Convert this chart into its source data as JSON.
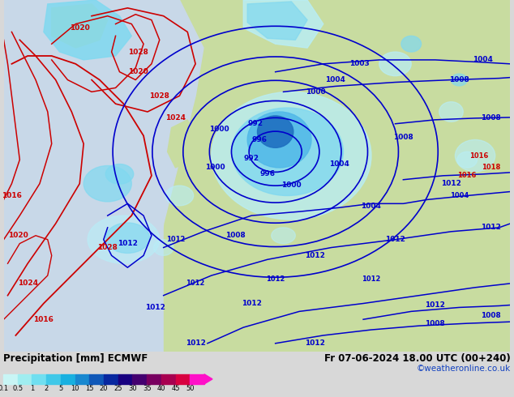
{
  "title_left": "Precipitation [mm] ECMWF",
  "title_right": "Fr 07-06-2024 18.00 UTC (00+240)",
  "credit": "©weatheronline.co.uk",
  "colorbar_levels": [
    "0.1",
    "0.5",
    "1",
    "2",
    "5",
    "10",
    "15",
    "20",
    "25",
    "30",
    "35",
    "40",
    "45",
    "50"
  ],
  "colorbar_colors": [
    "#c8f5f5",
    "#a0edf0",
    "#70dff0",
    "#40c8e8",
    "#18b0e0",
    "#1888d0",
    "#1058b8",
    "#0828a0",
    "#180080",
    "#440070",
    "#780060",
    "#a80050",
    "#d80040",
    "#ff10c8"
  ],
  "ocean_color": "#c8d8e8",
  "land_color": "#c8dca0",
  "bottom_bg": "#d8d8d8",
  "font_color": "#000000",
  "credit_color": "#1040c0",
  "fig_width": 6.34,
  "fig_height": 4.9,
  "dpi": 100,
  "red_isobar_color": "#cc0000",
  "blue_isobar_color": "#0000cc",
  "prec_colors": {
    "light1": "#b8eef8",
    "light2": "#80d8f0",
    "mid": "#50b8e8",
    "dark": "#2070c0",
    "vdark": "#1040a0"
  }
}
